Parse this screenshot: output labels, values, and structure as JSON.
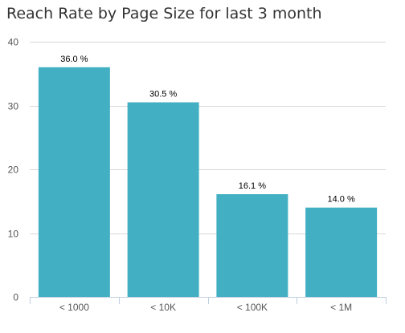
{
  "chart_data": {
    "type": "bar",
    "title": "Reach Rate by Page Size for last 3 month",
    "categories": [
      "< 1000",
      "< 10K",
      "< 100K",
      "< 1M"
    ],
    "values": [
      36.0,
      30.5,
      16.1,
      14.0
    ],
    "data_labels": [
      "36.0 %",
      "30.5 %",
      "16.1 %",
      "14.0 %"
    ],
    "xlabel": "",
    "ylabel": "",
    "ylim": [
      0,
      40
    ],
    "yticks": [
      0,
      10,
      20,
      30,
      40
    ],
    "grid": true,
    "legend": "none",
    "bar_color": "#42b0c2"
  }
}
